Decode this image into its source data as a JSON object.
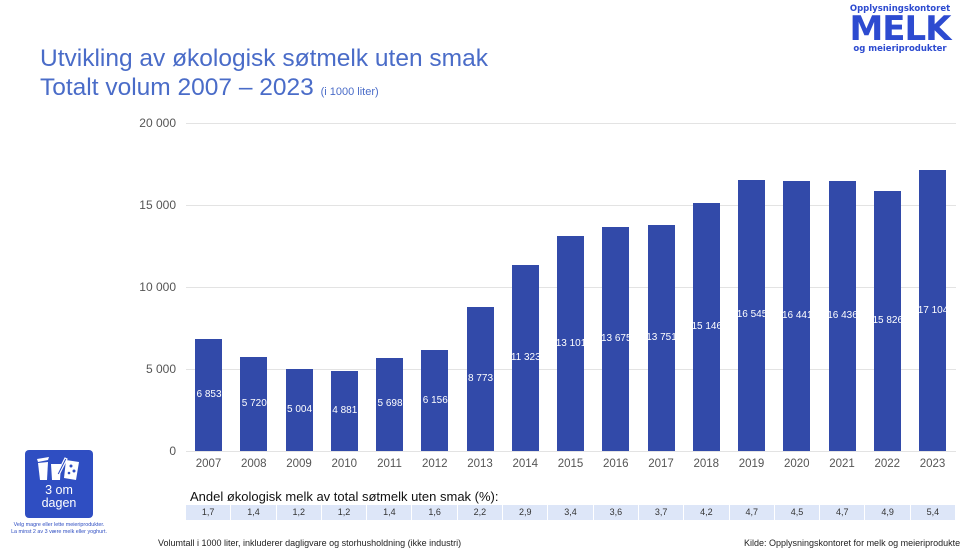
{
  "header": {
    "title_line1": "Utvikling av økologisk søtmelk uten smak",
    "title_line2": "Totalt volum 2007 – 2023",
    "title_unit": "(i 1000 liter)"
  },
  "logo": {
    "line1": "Opplysningskontoret",
    "line2": "MELK",
    "line3": "og meieriprodukter",
    "color": "#2d4bd0"
  },
  "badge": {
    "text_line1": "3 om",
    "text_line2": "dagen",
    "caption_line1": "Velg magre eller lette meieriprodukter.",
    "caption_line2": "La minst 2 av 3 være melk eller yoghurt.",
    "icon": "dairy-products-icon",
    "color": "#2f4ec2"
  },
  "chart_data": {
    "type": "bar",
    "title": "Utvikling av økologisk søtmelk uten smak – Totalt volum 2007 – 2023 (i 1000 liter)",
    "xlabel": "",
    "ylabel": "",
    "ylim": [
      0,
      20000
    ],
    "yticks": [
      0,
      5000,
      10000,
      15000,
      20000
    ],
    "ytick_labels": [
      "0",
      "5 000",
      "10 000",
      "15 000",
      "20 000"
    ],
    "grid": true,
    "legend": "none",
    "bar_color": "#324aa9",
    "categories": [
      "2007",
      "2008",
      "2009",
      "2010",
      "2011",
      "2012",
      "2013",
      "2014",
      "2015",
      "2016",
      "2017",
      "2018",
      "2019",
      "2020",
      "2021",
      "2022",
      "2023"
    ],
    "values": [
      6853,
      5720,
      5004,
      4881,
      5698,
      6156,
      8773,
      11323,
      13101,
      13675,
      13751,
      15146,
      16545,
      16441,
      16436,
      15826,
      17104
    ],
    "value_labels": [
      "6 853",
      "5 720",
      "5 004",
      "4 881",
      "5 698",
      "6 156",
      "8 773",
      "11 323",
      "13 101",
      "13 675",
      "13 751",
      "15 146",
      "16 545",
      "16 441",
      "16 436",
      "15 826",
      "17 104"
    ]
  },
  "share_table": {
    "title": "Andel økologisk melk av total søtmelk uten smak (%):",
    "values": [
      "1,7",
      "1,4",
      "1,2",
      "1,2",
      "1,4",
      "1,6",
      "2,2",
      "2,9",
      "3,4",
      "3,6",
      "3,7",
      "4,2",
      "4,7",
      "4,5",
      "4,7",
      "4,9",
      "5,4"
    ]
  },
  "footer": {
    "note": "Volumtall i 1000 liter, inkluderer dagligvare og storhusholdning (ikke industri)",
    "source": "Kilde: Opplysningskontoret for melk og meieriprodukter"
  }
}
